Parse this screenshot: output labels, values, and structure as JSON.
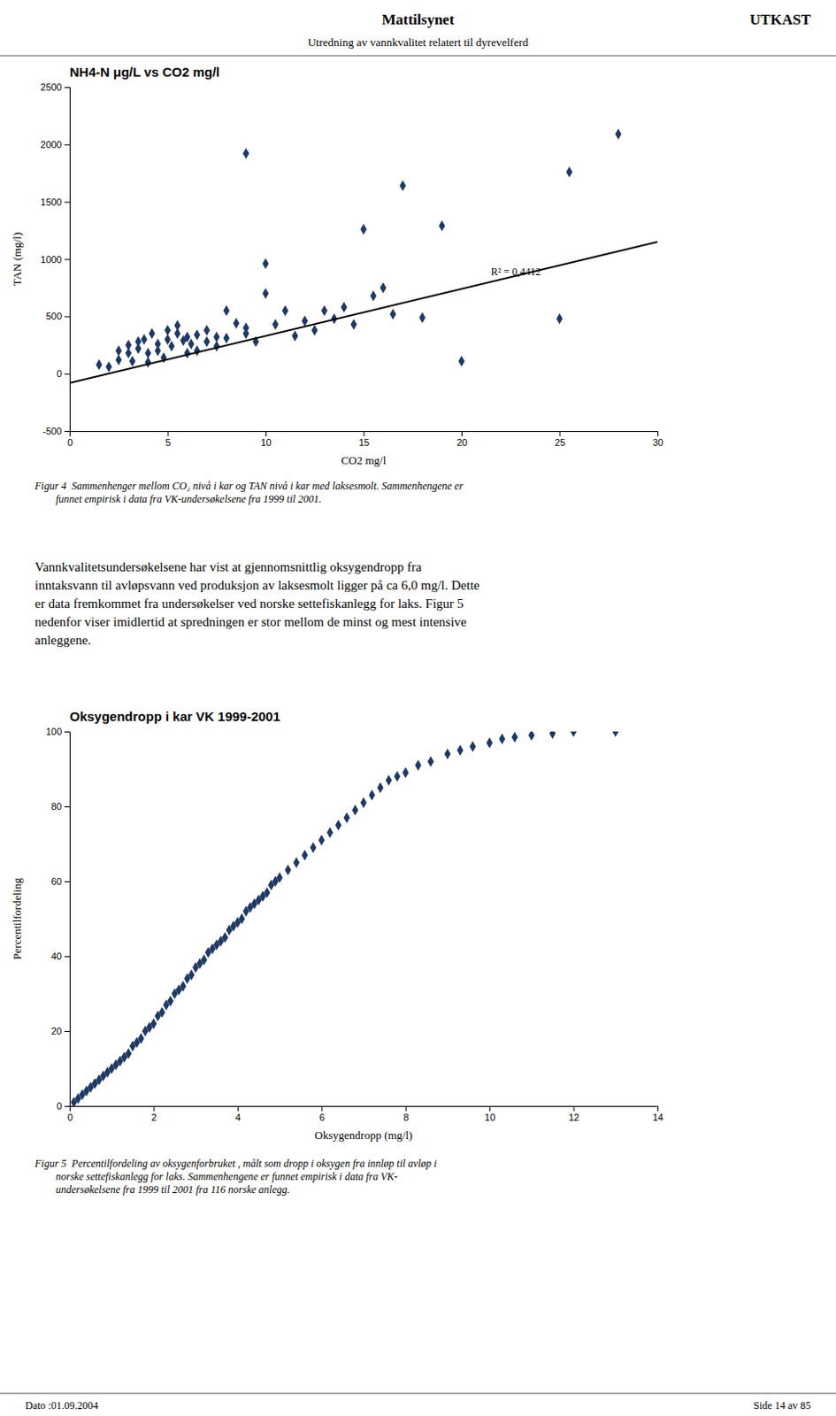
{
  "header_title": "Mattilsynet",
  "header_right": "UTKAST",
  "header_subtitle": "Utredning av vannkvalitet relatert til dyrevelferd",
  "chart_data": [
    {
      "type": "scatter",
      "title": "NH4-N μg/L vs CO2 mg/l",
      "xlabel": "CO2 mg/l",
      "ylabel": "TAN (mg/l)",
      "xlim": [
        0,
        30
      ],
      "ylim": [
        -500,
        2500
      ],
      "xticks": [
        0,
        5,
        10,
        15,
        20,
        25,
        30
      ],
      "yticks": [
        -500,
        0,
        500,
        1000,
        1500,
        2000,
        2500
      ],
      "grid": false,
      "series": [
        {
          "type": "scatter",
          "marker": "diamond",
          "color": "#1f3864",
          "x": [
            1.5,
            2.0,
            2.5,
            2.5,
            3.0,
            3.0,
            3.2,
            3.5,
            3.5,
            3.8,
            4.0,
            4.0,
            4.2,
            4.5,
            4.5,
            4.8,
            5.0,
            5.0,
            5.2,
            5.5,
            5.5,
            5.8,
            6.0,
            6.0,
            6.2,
            6.5,
            6.5,
            7.0,
            7.0,
            7.5,
            7.5,
            8.0,
            8.0,
            8.5,
            9.0,
            9.0,
            9.5,
            10.0,
            10.0,
            10.5,
            11.0,
            11.5,
            12.0,
            12.5,
            13.0,
            13.5,
            14.0,
            14.5,
            15.0,
            15.5,
            16.0,
            16.5,
            17.0,
            18.0,
            19.0,
            20.0,
            25.0,
            25.5,
            28.0,
            9.0
          ],
          "values": [
            80,
            60,
            200,
            120,
            250,
            180,
            110,
            280,
            220,
            300,
            180,
            100,
            350,
            260,
            200,
            140,
            380,
            300,
            240,
            420,
            350,
            290,
            180,
            320,
            260,
            200,
            340,
            280,
            380,
            320,
            240,
            550,
            310,
            440,
            400,
            350,
            280,
            960,
            700,
            430,
            550,
            330,
            460,
            380,
            550,
            480,
            580,
            430,
            1260,
            680,
            750,
            520,
            1640,
            490,
            1290,
            110,
            480,
            1760,
            2090,
            1920
          ]
        },
        {
          "type": "line",
          "line_style": "solid",
          "color": "#000000",
          "x": [
            0,
            30
          ],
          "values": [
            -80,
            1150
          ]
        }
      ],
      "annotations": [
        {
          "text": "R² = 0,4412",
          "x": 21.5,
          "y": 860
        }
      ]
    },
    {
      "type": "scatter",
      "title": "Oksygendropp i kar VK 1999-2001",
      "xlabel": "Oksygendropp (mg/l)",
      "ylabel": "Percentilfordeling",
      "xlim": [
        0,
        14
      ],
      "ylim": [
        0,
        100
      ],
      "xticks": [
        0,
        2,
        4,
        6,
        8,
        10,
        12,
        14
      ],
      "yticks": [
        0,
        20,
        40,
        60,
        80,
        100
      ],
      "grid": false,
      "series": [
        {
          "type": "scatter",
          "marker": "diamond",
          "color": "#1f3864",
          "x": [
            0.1,
            0.2,
            0.3,
            0.4,
            0.5,
            0.6,
            0.7,
            0.8,
            0.9,
            1.0,
            1.1,
            1.2,
            1.3,
            1.4,
            1.5,
            1.6,
            1.7,
            1.8,
            1.9,
            2.0,
            2.1,
            2.2,
            2.3,
            2.4,
            2.5,
            2.6,
            2.7,
            2.8,
            2.9,
            3.0,
            3.1,
            3.2,
            3.3,
            3.4,
            3.5,
            3.6,
            3.7,
            3.8,
            3.9,
            4.0,
            4.1,
            4.2,
            4.3,
            4.4,
            4.5,
            4.6,
            4.7,
            4.8,
            4.9,
            5.0,
            5.2,
            5.4,
            5.6,
            5.8,
            6.0,
            6.2,
            6.4,
            6.6,
            6.8,
            7.0,
            7.2,
            7.4,
            7.6,
            7.8,
            8.0,
            8.3,
            8.6,
            9.0,
            9.3,
            9.6,
            10.0,
            10.3,
            10.6,
            11.0,
            11.5,
            12.0,
            13.0
          ],
          "values": [
            1,
            2,
            3,
            4,
            5,
            6,
            7,
            8,
            9,
            10,
            11,
            12,
            13,
            14,
            16,
            17,
            18,
            20,
            21,
            22,
            24,
            25,
            27,
            28,
            30,
            31,
            32,
            34,
            35,
            37,
            38,
            39,
            41,
            42,
            43,
            44,
            45,
            47,
            48,
            49,
            50,
            52,
            53,
            54,
            55,
            56,
            57,
            59,
            60,
            61,
            63,
            65,
            67,
            69,
            71,
            73,
            75,
            77,
            79,
            81,
            83,
            85,
            87,
            88,
            89,
            91,
            92,
            94,
            95,
            96,
            97,
            98,
            98.5,
            99,
            99.5,
            100,
            100
          ]
        }
      ]
    }
  ],
  "figur4_text": [
    "Figur 4  Sammenhenger mellom CO₂ nivå i kar og TAN nivå i kar med laksesmolt. Sammenhengene er",
    "        funnet empirisk i data fra VK-undersøkelsene fra 1999 til 2001."
  ],
  "body_text": [
    "Vannkvalitetsundersøkelsene har vist at gjennomsnittlig oksygendropp fra",
    "inntaksvann til avløpsvann ved produksjon av laksesmolt ligger på ca 6,0 mg/l. Dette",
    "er data fremkommet fra undersøkelser ved norske settefiskanlegg for laks. Figur 5",
    "nedenfor viser imidlertid at spredningen er stor mellom de minst og mest intensive",
    "anleggene."
  ],
  "figur5_text": [
    "Figur 5  Percentilfordeling av oksygenforbruket , målt som dropp i oksygen fra innløp til avløp i",
    "        norske settefiskanlegg for laks. Sammenhengene er funnet empirisk i data fra VK-",
    "        undersøkelsene fra 1999 til 2001 fra 116 norske anlegg."
  ],
  "footer_left": "Dato :01.09.2004",
  "footer_right": "Side 14 av 85"
}
